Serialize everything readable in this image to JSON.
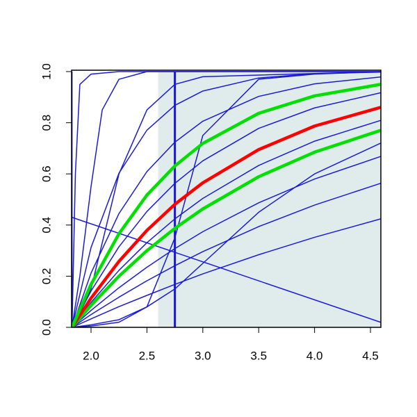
{
  "chart_data": {
    "type": "line",
    "xlim": [
      1.826,
      4.593
    ],
    "ylim": [
      0,
      1
    ],
    "xticks": [
      {
        "value": 2,
        "label": "2.0"
      },
      2.5,
      {
        "value": 3,
        "label": "3.0"
      },
      3.5,
      {
        "value": 4,
        "label": "4.0"
      },
      4.5
    ],
    "yticks": [
      {
        "value": 0,
        "label": "0.0"
      },
      0.2,
      0.4,
      0.6,
      0.8,
      {
        "value": 1,
        "label": "1.0"
      }
    ],
    "shade": {
      "x": [
        2.6,
        4.593
      ],
      "color": "#e0ecec"
    },
    "series": [
      {
        "color": "#1a1ad6",
        "width": 1.5,
        "x": [
          1.83,
          2.0,
          2.25,
          2.5,
          2.75,
          3.0,
          3.5,
          4.0,
          4.59
        ],
        "values": [
          0,
          0.033,
          0.081,
          0.125,
          0.168,
          0.209,
          0.284,
          0.352,
          0.424
        ]
      },
      {
        "color": "#1a1ad6",
        "width": 1.5,
        "x": [
          1.83,
          2.0,
          2.25,
          2.5,
          2.75,
          3.0,
          3.5,
          4.0,
          4.59
        ],
        "values": [
          0,
          0.05,
          0.118,
          0.182,
          0.241,
          0.296,
          0.394,
          0.478,
          0.563
        ]
      },
      {
        "color": "#1a1ad6",
        "width": 1.5,
        "x": [
          1.83,
          2.0,
          2.25,
          2.5,
          2.75,
          3.0,
          3.5,
          4.0,
          4.59
        ],
        "values": [
          0,
          0.066,
          0.155,
          0.235,
          0.308,
          0.374,
          0.487,
          0.58,
          0.668
        ]
      },
      {
        "color": "#1a1ad6",
        "width": 1.5,
        "x": [
          1.83,
          2.0,
          2.25,
          2.5,
          2.75,
          3.0,
          3.5,
          4.0,
          4.59
        ],
        "values": [
          0,
          0.097,
          0.223,
          0.331,
          0.424,
          0.504,
          0.633,
          0.728,
          0.809
        ]
      },
      {
        "color": "#1a1ad6",
        "width": 1.5,
        "x": [
          1.83,
          2.0,
          2.25,
          2.5,
          2.75,
          3.0,
          3.5,
          4.0,
          4.59
        ],
        "values": [
          0,
          0.142,
          0.315,
          0.453,
          0.563,
          0.651,
          0.778,
          0.858,
          0.917
        ]
      },
      {
        "color": "#1a1ad6",
        "width": 1.5,
        "x": [
          1.83,
          2.0,
          2.25,
          2.5,
          2.75,
          3.0,
          3.5,
          4.0,
          4.59
        ],
        "values": [
          0,
          0.212,
          0.445,
          0.609,
          0.724,
          0.806,
          0.903,
          0.952,
          0.979
        ]
      },
      {
        "color": "#1a1ad6",
        "width": 1.5,
        "x": [
          1.83,
          2.0,
          2.25,
          2.5,
          2.75,
          3.0,
          3.5,
          4.0,
          4.59
        ],
        "values": [
          0,
          0.312,
          0.603,
          0.771,
          0.868,
          0.924,
          0.975,
          0.992,
          0.998
        ]
      },
      {
        "color": "#1a1ad6",
        "width": 1.5,
        "x": [
          1.83,
          2.0,
          2.25,
          2.5,
          2.75,
          3.0,
          3.5,
          4.0,
          4.59
        ],
        "values": [
          0,
          0.005,
          0.02,
          0.08,
          0.35,
          0.75,
          0.97,
          0.99,
          1.0
        ]
      },
      {
        "color": "#1a1ad6",
        "width": 1.5,
        "x": [
          1.83,
          2.0,
          2.25,
          2.5,
          2.75,
          3.0,
          3.5,
          4.0,
          4.59
        ],
        "values": [
          0,
          0.01,
          0.03,
          0.08,
          0.15,
          0.25,
          0.45,
          0.6,
          0.72
        ]
      },
      {
        "color": "#1a1ad6",
        "width": 1.5,
        "x": [
          1.83,
          1.86,
          1.9,
          2.0,
          2.25,
          2.5,
          4.59
        ],
        "values": [
          0,
          0.6,
          0.95,
          0.99,
          1.0,
          1.0,
          1.0
        ]
      },
      {
        "color": "#1a1ad6",
        "width": 1.5,
        "x": [
          1.83,
          1.9,
          2.0,
          2.1,
          2.25,
          2.5,
          4.59
        ],
        "values": [
          0,
          0.2,
          0.55,
          0.85,
          0.97,
          1.0,
          1.0
        ]
      },
      {
        "color": "#1a1ad6",
        "width": 1.5,
        "x": [
          1.83,
          2.0,
          2.25,
          2.5,
          2.75,
          3.0,
          4.59
        ],
        "values": [
          0,
          0.15,
          0.6,
          0.85,
          0.95,
          0.98,
          1.0
        ]
      },
      {
        "color": "#1a1ad6",
        "width": 1.5,
        "x": [
          1.83,
          1.83
        ],
        "values": [
          0,
          1
        ]
      },
      {
        "color": "#1a1ad6",
        "width": 1.5,
        "x": [
          1.83,
          4.59
        ],
        "values": [
          0.43,
          0.02
        ]
      },
      {
        "color": "#1a1ad6",
        "width": 3,
        "x": [
          2.75,
          2.75
        ],
        "values": [
          0,
          1
        ]
      },
      {
        "color": "#00e000",
        "width": 4.5,
        "x": [
          1.83,
          2.0,
          2.25,
          2.5,
          2.75,
          3.0,
          3.5,
          4.0,
          4.59
        ],
        "values": [
          0,
          0.086,
          0.2,
          0.3,
          0.387,
          0.463,
          0.589,
          0.685,
          0.77
        ]
      },
      {
        "color": "#ff0000",
        "width": 4.5,
        "x": [
          1.83,
          2.0,
          2.25,
          2.5,
          2.75,
          3.0,
          3.5,
          4.0,
          4.59
        ],
        "values": [
          0,
          0.114,
          0.258,
          0.379,
          0.481,
          0.565,
          0.695,
          0.787,
          0.86
        ]
      },
      {
        "color": "#00e000",
        "width": 4.5,
        "x": [
          1.83,
          2.0,
          2.25,
          2.5,
          2.75,
          3.0,
          3.5,
          4.0,
          4.59
        ],
        "values": [
          0,
          0.168,
          0.366,
          0.517,
          0.631,
          0.719,
          0.837,
          0.905,
          0.95
        ]
      }
    ]
  }
}
